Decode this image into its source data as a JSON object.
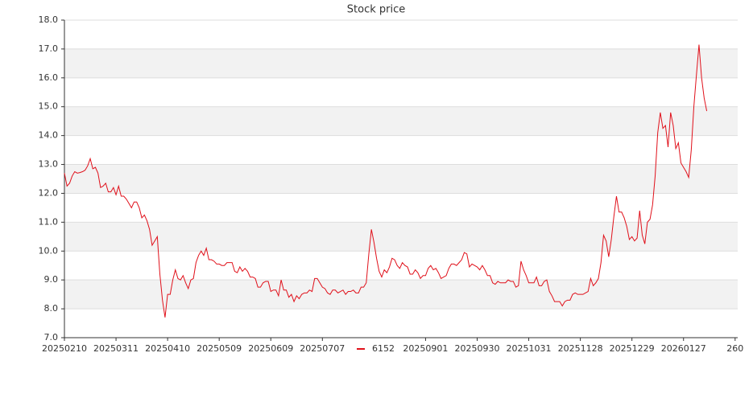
{
  "chart_data": {
    "type": "line",
    "title": "Stock price",
    "xlim": [
      0,
      261
    ],
    "xticks": [
      {
        "value": 0,
        "label": "20250210"
      },
      {
        "value": 20,
        "label": "20250311"
      },
      {
        "value": 40,
        "label": "20250410"
      },
      {
        "value": 60,
        "label": "20250509"
      },
      {
        "value": 80,
        "label": "20250609"
      },
      {
        "value": 100,
        "label": "20250707"
      },
      {
        "value": 140,
        "label": "20250901"
      },
      {
        "value": 160,
        "label": "20250930"
      },
      {
        "value": 180,
        "label": "20251031"
      },
      {
        "value": 200,
        "label": "20251128"
      },
      {
        "value": 220,
        "label": "20251229"
      },
      {
        "value": 240,
        "label": "20260127"
      },
      {
        "value": 260,
        "label": "260"
      }
    ],
    "ylim": [
      7,
      18
    ],
    "yticks": [
      {
        "value": 7,
        "label": "7.0"
      },
      {
        "value": 8,
        "label": "8.0"
      },
      {
        "value": 9,
        "label": "9.0"
      },
      {
        "value": 10,
        "label": "10.0"
      },
      {
        "value": 11,
        "label": "11.0"
      },
      {
        "value": 12,
        "label": "12.0"
      },
      {
        "value": 13,
        "label": "13.0"
      },
      {
        "value": 14,
        "label": "14.0"
      },
      {
        "value": 15,
        "label": "15.0"
      },
      {
        "value": 16,
        "label": "16.0"
      },
      {
        "value": 17,
        "label": "17.0"
      },
      {
        "value": 18,
        "label": "18.0"
      }
    ],
    "grid": true,
    "band_color": "#f2f2f2",
    "legend_position": "bottom",
    "series": [
      {
        "name": "6152",
        "color": "#e0101a",
        "values": [
          12.7,
          12.25,
          12.35,
          12.6,
          12.75,
          12.7,
          12.72,
          12.75,
          12.8,
          12.95,
          13.2,
          12.85,
          12.9,
          12.7,
          12.2,
          12.25,
          12.35,
          12.05,
          12.05,
          12.2,
          11.95,
          12.25,
          11.9,
          11.9,
          11.8,
          11.65,
          11.5,
          11.7,
          11.7,
          11.5,
          11.15,
          11.25,
          11.05,
          10.75,
          10.2,
          10.35,
          10.5,
          9.2,
          8.3,
          7.7,
          8.5,
          8.5,
          9.0,
          9.35,
          9.05,
          9.0,
          9.15,
          8.9,
          8.7,
          9.0,
          9.05,
          9.6,
          9.85,
          10.0,
          9.85,
          10.1,
          9.7,
          9.7,
          9.65,
          9.55,
          9.55,
          9.5,
          9.5,
          9.6,
          9.6,
          9.6,
          9.3,
          9.25,
          9.45,
          9.3,
          9.4,
          9.3,
          9.1,
          9.1,
          9.05,
          8.75,
          8.75,
          8.9,
          8.95,
          8.95,
          8.6,
          8.65,
          8.65,
          8.45,
          9.0,
          8.65,
          8.65,
          8.4,
          8.5,
          8.25,
          8.45,
          8.35,
          8.5,
          8.55,
          8.55,
          8.65,
          8.6,
          9.05,
          9.05,
          8.9,
          8.75,
          8.7,
          8.55,
          8.5,
          8.65,
          8.65,
          8.55,
          8.6,
          8.65,
          8.5,
          8.6,
          8.6,
          8.65,
          8.55,
          8.55,
          8.75,
          8.75,
          8.9,
          9.9,
          10.75,
          10.3,
          9.75,
          9.3,
          9.1,
          9.35,
          9.25,
          9.45,
          9.75,
          9.7,
          9.5,
          9.4,
          9.6,
          9.5,
          9.45,
          9.2,
          9.2,
          9.35,
          9.25,
          9.05,
          9.15,
          9.15,
          9.4,
          9.5,
          9.35,
          9.4,
          9.25,
          9.05,
          9.1,
          9.15,
          9.4,
          9.55,
          9.55,
          9.5,
          9.6,
          9.7,
          9.95,
          9.9,
          9.45,
          9.55,
          9.5,
          9.45,
          9.35,
          9.5,
          9.35,
          9.15,
          9.15,
          8.9,
          8.85,
          8.95,
          8.9,
          8.9,
          8.9,
          9.0,
          8.95,
          8.95,
          8.75,
          8.8,
          9.65,
          9.35,
          9.15,
          8.9,
          8.9,
          8.9,
          9.1,
          8.8,
          8.8,
          8.95,
          9.0,
          8.6,
          8.45,
          8.25,
          8.25,
          8.25,
          8.1,
          8.25,
          8.3,
          8.3,
          8.5,
          8.55,
          8.5,
          8.5,
          8.5,
          8.55,
          8.6,
          9.05,
          8.8,
          8.9,
          9.05,
          9.6,
          10.55,
          10.35,
          9.8,
          10.4,
          11.2,
          11.9,
          11.35,
          11.35,
          11.15,
          10.85,
          10.4,
          10.5,
          10.35,
          10.45,
          11.4,
          10.55,
          10.25,
          11.0,
          11.1,
          11.6,
          12.6,
          14.1,
          14.8,
          14.25,
          14.35,
          13.6,
          14.8,
          14.35,
          13.55,
          13.75,
          13.05,
          12.9,
          12.75,
          12.55,
          13.5,
          15.0,
          16.1,
          17.15,
          16.0,
          15.3,
          14.85
        ]
      }
    ]
  }
}
